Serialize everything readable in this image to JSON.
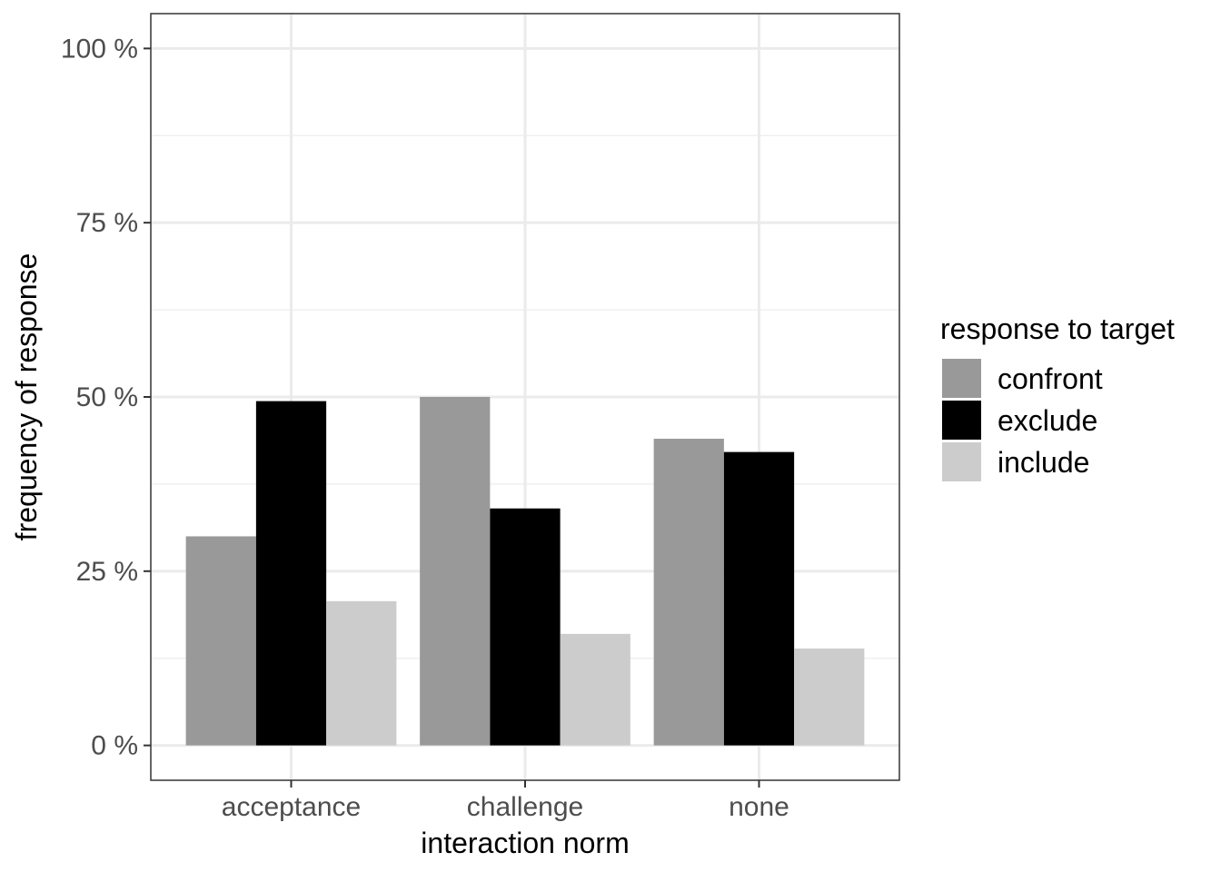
{
  "chart_data": {
    "type": "bar",
    "categories": [
      "acceptance",
      "challenge",
      "none"
    ],
    "series": [
      {
        "name": "confront",
        "values": [
          30,
          50,
          44
        ],
        "color": "#999999"
      },
      {
        "name": "exclude",
        "values": [
          49.4,
          34,
          42.1
        ],
        "color": "#000000"
      },
      {
        "name": "include",
        "values": [
          20.7,
          16,
          13.9
        ],
        "color": "#cccccc"
      }
    ],
    "xlabel": "interaction norm",
    "ylabel": "frequency of response",
    "ylim": [
      -5,
      105
    ],
    "yticks": [
      0,
      25,
      50,
      75,
      100
    ],
    "ytick_labels": [
      "0 %",
      "25 %",
      "50 %",
      "75 %",
      "100 %"
    ],
    "legend": {
      "title": "response to target",
      "position": "right"
    },
    "grid": true
  }
}
